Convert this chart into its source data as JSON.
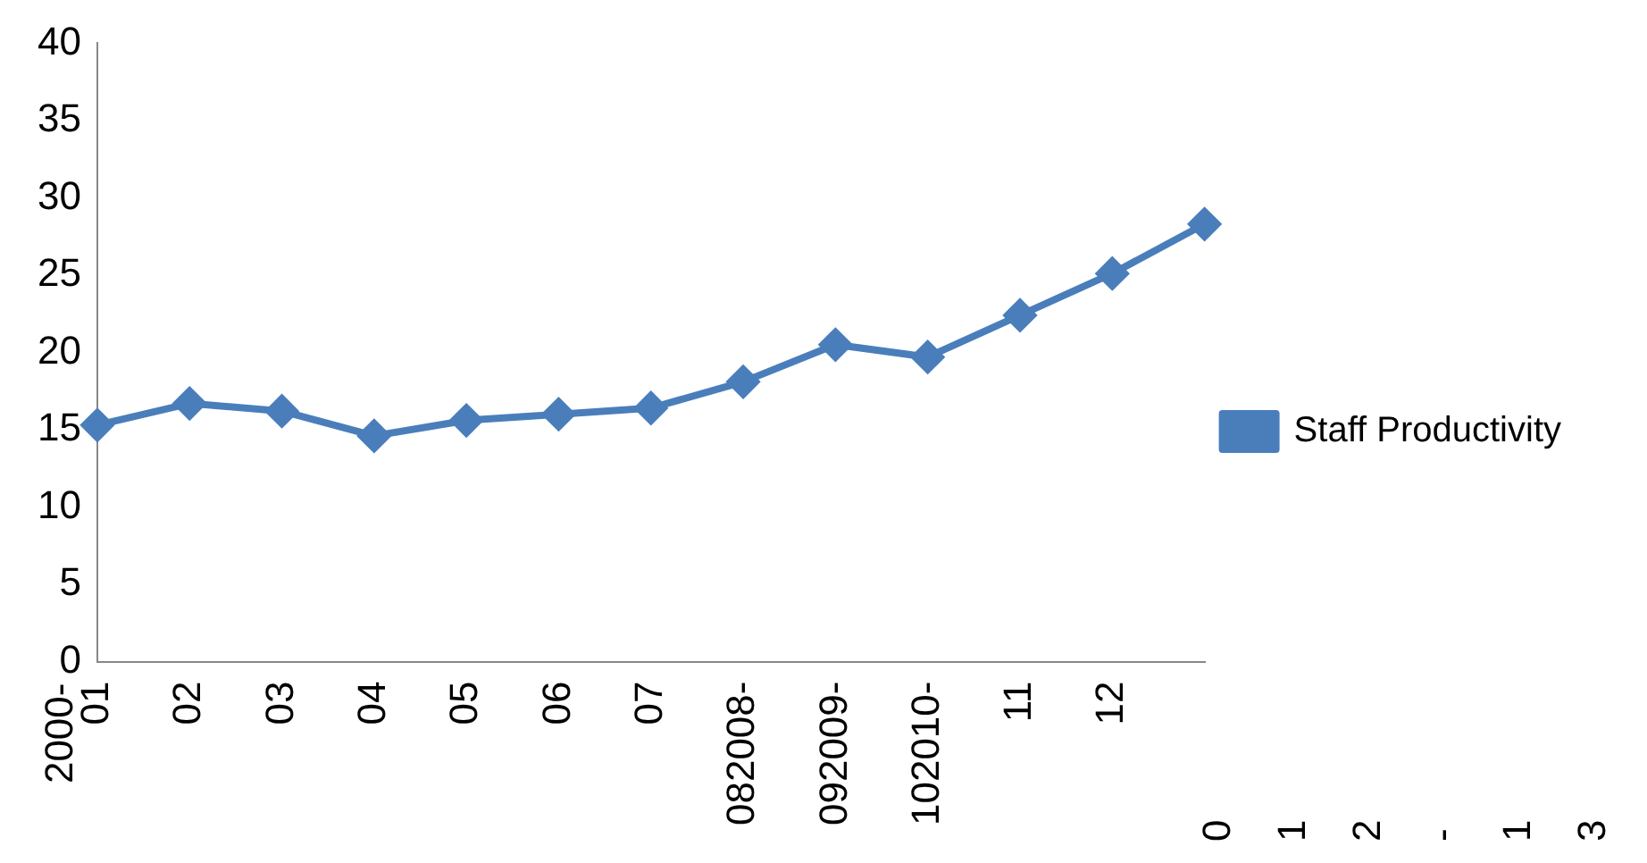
{
  "chart_data": {
    "type": "line",
    "categories": [
      "01",
      "02",
      "03",
      "04",
      "05",
      "06",
      "07",
      "082008-",
      "092009-",
      "102010-",
      "11",
      "12",
      null
    ],
    "series": [
      {
        "name": "Staff Productivity",
        "color": "#4a7ebb",
        "values": [
          15.3,
          16.7,
          16.2,
          14.6,
          15.6,
          16.0,
          16.4,
          18.1,
          20.5,
          19.7,
          22.4,
          25.1,
          28.3
        ]
      }
    ],
    "ylim": [
      0,
      40
    ],
    "yticks": [
      0,
      5,
      10,
      15,
      20,
      25,
      30,
      35,
      40
    ],
    "grid": false,
    "legend": "right",
    "marker": "diamond",
    "line_style": "solid",
    "annotations": [
      "2000-",
      "0",
      "1",
      "2",
      "-",
      "1",
      "3"
    ]
  }
}
